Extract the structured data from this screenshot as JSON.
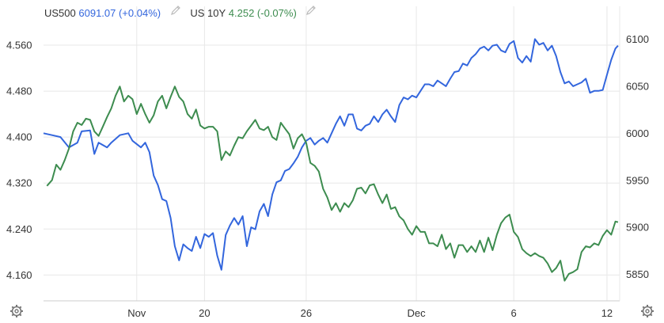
{
  "legend": {
    "s1_name": "US500",
    "s1_value": "6091.07 (+0.04%)",
    "s2_name": "US 10Y",
    "s2_value": "4.252 (-0.07%)"
  },
  "icons": {
    "edit": "pencil-icon",
    "settings": "gear-icon"
  },
  "colors": {
    "us500": "#3366dd",
    "us10y": "#3d8c4f",
    "grid": "#e8e8e8",
    "axis_text": "#333333"
  },
  "chart_data": {
    "type": "line",
    "x_ticks": [
      {
        "label": "Nov",
        "x": 22
      },
      {
        "label": "20",
        "x": 38
      },
      {
        "label": "26",
        "x": 62
      },
      {
        "label": "Dec",
        "x": 88
      },
      {
        "label": "6",
        "x": 111
      },
      {
        "label": "12",
        "x": 133
      }
    ],
    "xlim": [
      0,
      136
    ],
    "left_axis": {
      "ticks": [
        "4.560",
        "4.480",
        "4.400",
        "4.320",
        "4.240",
        "4.160"
      ],
      "ylim": [
        4.115,
        4.6
      ]
    },
    "right_axis": {
      "ticks": [
        "6100",
        "6050",
        "6000",
        "5950",
        "5900",
        "5850"
      ],
      "ylim": [
        5822,
        6118
      ]
    },
    "series": [
      {
        "name": "US500",
        "axis": "right",
        "points": [
          [
            0,
            6000
          ],
          [
            2,
            5998
          ],
          [
            4,
            5996
          ],
          [
            6,
            5985
          ],
          [
            8,
            5990
          ],
          [
            9,
            6002
          ],
          [
            11,
            6003
          ],
          [
            12,
            5978
          ],
          [
            13,
            5990
          ],
          [
            15,
            5985
          ],
          [
            16,
            5990
          ],
          [
            18,
            5998
          ],
          [
            20,
            6000
          ],
          [
            21,
            5992
          ],
          [
            23,
            5985
          ],
          [
            24,
            5990
          ],
          [
            25,
            5980
          ],
          [
            26,
            5955
          ],
          [
            27,
            5945
          ],
          [
            28,
            5930
          ],
          [
            29,
            5928
          ],
          [
            30,
            5910
          ],
          [
            31,
            5880
          ],
          [
            32,
            5865
          ],
          [
            33,
            5882
          ],
          [
            34,
            5878
          ],
          [
            35,
            5875
          ],
          [
            36,
            5890
          ],
          [
            37,
            5878
          ],
          [
            38,
            5893
          ],
          [
            39,
            5890
          ],
          [
            40,
            5894
          ],
          [
            41,
            5870
          ],
          [
            42,
            5855
          ],
          [
            43,
            5892
          ],
          [
            44,
            5902
          ],
          [
            45,
            5910
          ],
          [
            46,
            5903
          ],
          [
            47,
            5912
          ],
          [
            48,
            5880
          ],
          [
            49,
            5900
          ],
          [
            50,
            5898
          ],
          [
            51,
            5917
          ],
          [
            52,
            5925
          ],
          [
            53,
            5912
          ],
          [
            54,
            5935
          ],
          [
            55,
            5948
          ],
          [
            56,
            5950
          ],
          [
            57,
            5960
          ],
          [
            58,
            5962
          ],
          [
            59,
            5968
          ],
          [
            60,
            5975
          ],
          [
            61,
            5985
          ],
          [
            62,
            5992
          ],
          [
            63,
            5995
          ],
          [
            64,
            5988
          ],
          [
            65,
            5992
          ],
          [
            66,
            5995
          ],
          [
            67,
            5990
          ],
          [
            68,
            6000
          ],
          [
            69,
            6010
          ],
          [
            70,
            6018
          ],
          [
            71,
            6008
          ],
          [
            72,
            6020
          ],
          [
            73,
            6020
          ],
          [
            74,
            6005
          ],
          [
            75,
            6003
          ],
          [
            76,
            6008
          ],
          [
            77,
            6010
          ],
          [
            78,
            6018
          ],
          [
            79,
            6012
          ],
          [
            80,
            6020
          ],
          [
            81,
            6025
          ],
          [
            82,
            6018
          ],
          [
            83,
            6012
          ],
          [
            84,
            6030
          ],
          [
            85,
            6038
          ],
          [
            86,
            6036
          ],
          [
            87,
            6040
          ],
          [
            88,
            6038
          ],
          [
            89,
            6045
          ],
          [
            90,
            6052
          ],
          [
            91,
            6052
          ],
          [
            92,
            6050
          ],
          [
            93,
            6056
          ],
          [
            94,
            6053
          ],
          [
            95,
            6050
          ],
          [
            96,
            6058
          ],
          [
            97,
            6065
          ],
          [
            98,
            6066
          ],
          [
            99,
            6074
          ],
          [
            100,
            6072
          ],
          [
            101,
            6080
          ],
          [
            102,
            6084
          ],
          [
            103,
            6090
          ],
          [
            104,
            6092
          ],
          [
            105,
            6088
          ],
          [
            106,
            6093
          ],
          [
            107,
            6094
          ],
          [
            108,
            6088
          ],
          [
            109,
            6086
          ],
          [
            110,
            6095
          ],
          [
            111,
            6098
          ],
          [
            112,
            6080
          ],
          [
            113,
            6075
          ],
          [
            114,
            6082
          ],
          [
            115,
            6076
          ],
          [
            116,
            6100
          ],
          [
            117,
            6094
          ],
          [
            118,
            6096
          ],
          [
            119,
            6088
          ],
          [
            120,
            6093
          ],
          [
            121,
            6082
          ],
          [
            122,
            6065
          ],
          [
            123,
            6053
          ],
          [
            124,
            6055
          ],
          [
            125,
            6050
          ],
          [
            126,
            6052
          ],
          [
            127,
            6054
          ],
          [
            128,
            6058
          ],
          [
            129,
            6043
          ],
          [
            130,
            6045
          ],
          [
            131,
            6045
          ],
          [
            132,
            6046
          ],
          [
            133,
            6062
          ],
          [
            134,
            6078
          ],
          [
            135,
            6090
          ],
          [
            135.6,
            6093
          ]
        ]
      },
      {
        "name": "US 10Y",
        "axis": "left",
        "points": [
          [
            0.8,
            4.315
          ],
          [
            2,
            4.325
          ],
          [
            3,
            4.352
          ],
          [
            4,
            4.343
          ],
          [
            5,
            4.36
          ],
          [
            6,
            4.38
          ],
          [
            7,
            4.41
          ],
          [
            8,
            4.425
          ],
          [
            9,
            4.421
          ],
          [
            10,
            4.432
          ],
          [
            11,
            4.43
          ],
          [
            12,
            4.41
          ],
          [
            13,
            4.402
          ],
          [
            14,
            4.418
          ],
          [
            15,
            4.435
          ],
          [
            16,
            4.45
          ],
          [
            17,
            4.472
          ],
          [
            18,
            4.488
          ],
          [
            19,
            4.462
          ],
          [
            20,
            4.472
          ],
          [
            21,
            4.466
          ],
          [
            22,
            4.44
          ],
          [
            23,
            4.458
          ],
          [
            24,
            4.44
          ],
          [
            25,
            4.425
          ],
          [
            26,
            4.438
          ],
          [
            27,
            4.462
          ],
          [
            28,
            4.472
          ],
          [
            29,
            4.45
          ],
          [
            30,
            4.47
          ],
          [
            31,
            4.488
          ],
          [
            32,
            4.47
          ],
          [
            33,
            4.462
          ],
          [
            34,
            4.44
          ],
          [
            35,
            4.432
          ],
          [
            36,
            4.448
          ],
          [
            37,
            4.42
          ],
          [
            38,
            4.415
          ],
          [
            39,
            4.418
          ],
          [
            40,
            4.418
          ],
          [
            41,
            4.41
          ],
          [
            42,
            4.36
          ],
          [
            43,
            4.375
          ],
          [
            44,
            4.368
          ],
          [
            45,
            4.385
          ],
          [
            46,
            4.4
          ],
          [
            47,
            4.398
          ],
          [
            48,
            4.41
          ],
          [
            49,
            4.42
          ],
          [
            50,
            4.43
          ],
          [
            51,
            4.415
          ],
          [
            52,
            4.412
          ],
          [
            53,
            4.418
          ],
          [
            54,
            4.4
          ],
          [
            55,
            4.395
          ],
          [
            56,
            4.425
          ],
          [
            57,
            4.415
          ],
          [
            58,
            4.405
          ],
          [
            59,
            4.38
          ],
          [
            60,
            4.398
          ],
          [
            61,
            4.405
          ],
          [
            62,
            4.39
          ],
          [
            63,
            4.355
          ],
          [
            64,
            4.35
          ],
          [
            65,
            4.34
          ],
          [
            66,
            4.31
          ],
          [
            67,
            4.295
          ],
          [
            68,
            4.273
          ],
          [
            69,
            4.285
          ],
          [
            70,
            4.27
          ],
          [
            71,
            4.285
          ],
          [
            72,
            4.278
          ],
          [
            73,
            4.29
          ],
          [
            74,
            4.31
          ],
          [
            75,
            4.312
          ],
          [
            76,
            4.302
          ],
          [
            77,
            4.316
          ],
          [
            78,
            4.318
          ],
          [
            79,
            4.3
          ],
          [
            80,
            4.285
          ],
          [
            81,
            4.3
          ],
          [
            82,
            4.275
          ],
          [
            83,
            4.278
          ],
          [
            84,
            4.262
          ],
          [
            85,
            4.255
          ],
          [
            86,
            4.24
          ],
          [
            87,
            4.23
          ],
          [
            88,
            4.245
          ],
          [
            89,
            4.235
          ],
          [
            90,
            4.235
          ],
          [
            91,
            4.215
          ],
          [
            92,
            4.215
          ],
          [
            93,
            4.21
          ],
          [
            94,
            4.23
          ],
          [
            95,
            4.205
          ],
          [
            96,
            4.215
          ],
          [
            97,
            4.19
          ],
          [
            98,
            4.212
          ],
          [
            99,
            4.212
          ],
          [
            100,
            4.2
          ],
          [
            101,
            4.21
          ],
          [
            102,
            4.2
          ],
          [
            103,
            4.22
          ],
          [
            104,
            4.2
          ],
          [
            105,
            4.225
          ],
          [
            106,
            4.203
          ],
          [
            107,
            4.23
          ],
          [
            108,
            4.25
          ],
          [
            109,
            4.26
          ],
          [
            110,
            4.265
          ],
          [
            111,
            4.235
          ],
          [
            112,
            4.226
          ],
          [
            113,
            4.205
          ],
          [
            114,
            4.198
          ],
          [
            115,
            4.193
          ],
          [
            116,
            4.198
          ],
          [
            117,
            4.193
          ],
          [
            118,
            4.19
          ],
          [
            119,
            4.18
          ],
          [
            120,
            4.165
          ],
          [
            121,
            4.172
          ],
          [
            122,
            4.185
          ],
          [
            123,
            4.15
          ],
          [
            124,
            4.162
          ],
          [
            125,
            4.165
          ],
          [
            126,
            4.17
          ],
          [
            127,
            4.2
          ],
          [
            128,
            4.21
          ],
          [
            129,
            4.208
          ],
          [
            130,
            4.215
          ],
          [
            131,
            4.212
          ],
          [
            132,
            4.228
          ],
          [
            133,
            4.238
          ],
          [
            134,
            4.23
          ],
          [
            135,
            4.253
          ],
          [
            135.6,
            4.252
          ]
        ]
      }
    ]
  }
}
